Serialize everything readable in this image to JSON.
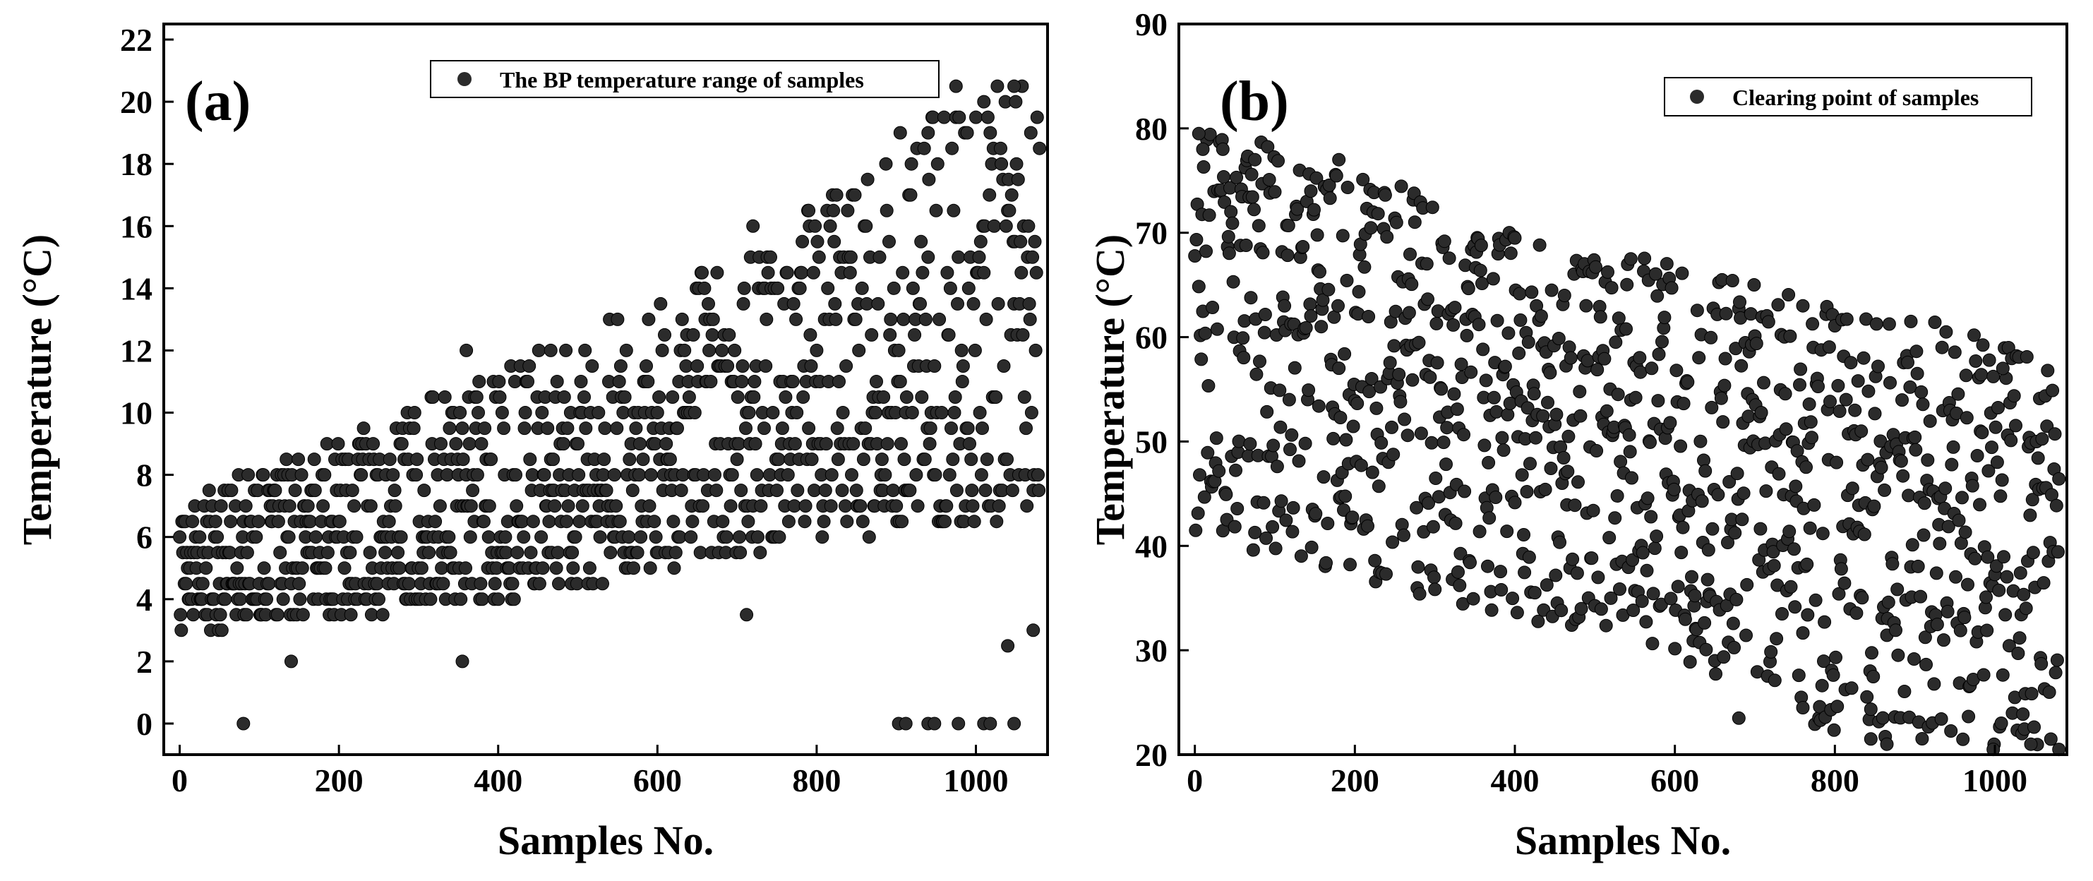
{
  "colors": {
    "marker": "#2b2b2b",
    "axis": "#000000",
    "background": "#ffffff"
  },
  "chart_data": [
    {
      "type": "scatter",
      "panel_label": "(a)",
      "legend": "The BP temperature range of samples",
      "legend_position": "top-right",
      "xlabel": "Samples No.",
      "ylabel": "Temperature (°C)",
      "xlim": [
        -20,
        1090
      ],
      "ylim": [
        -1,
        22.5
      ],
      "xticks": [
        0,
        200,
        400,
        600,
        800,
        1000
      ],
      "yticks": [
        0,
        2,
        4,
        6,
        8,
        10,
        12,
        14,
        16,
        18,
        20,
        22
      ],
      "grid": false,
      "trend": {
        "x": [
          0,
          200,
          400,
          600,
          800,
          1000,
          1080
        ],
        "lower": [
          3,
          3.5,
          4,
          5,
          6,
          6.5,
          7
        ],
        "upper": [
          7.5,
          9,
          11.5,
          13.5,
          16.5,
          20.5,
          20.5
        ]
      },
      "highlight_points": [
        {
          "x": 80,
          "y": 0
        },
        {
          "x": 903,
          "y": 0
        },
        {
          "x": 912,
          "y": 0
        },
        {
          "x": 940,
          "y": 0
        },
        {
          "x": 948,
          "y": 0
        },
        {
          "x": 978,
          "y": 0
        },
        {
          "x": 1010,
          "y": 0
        },
        {
          "x": 1018,
          "y": 0
        },
        {
          "x": 1048,
          "y": 0
        },
        {
          "x": 355,
          "y": 2
        },
        {
          "x": 140,
          "y": 2
        },
        {
          "x": 1040,
          "y": 2.5
        },
        {
          "x": 1072,
          "y": 3
        },
        {
          "x": 712,
          "y": 3.5
        },
        {
          "x": 360,
          "y": 12
        },
        {
          "x": 466,
          "y": 12
        },
        {
          "x": 720,
          "y": 16
        },
        {
          "x": 790,
          "y": 16.5
        },
        {
          "x": 905,
          "y": 19
        },
        {
          "x": 940,
          "y": 19
        },
        {
          "x": 975,
          "y": 20.5
        },
        {
          "x": 1010,
          "y": 20
        },
        {
          "x": 1048,
          "y": 20.5
        }
      ]
    },
    {
      "type": "scatter",
      "panel_label": "(b)",
      "legend": "Clearing point of samples",
      "legend_position": "top-right",
      "xlabel": "Samples No.",
      "ylabel": "Temperature (°C)",
      "xlim": [
        -20,
        1090
      ],
      "ylim": [
        20,
        90
      ],
      "xticks": [
        0,
        200,
        400,
        600,
        800,
        1000
      ],
      "yticks": [
        20,
        30,
        40,
        50,
        60,
        70,
        80,
        90
      ],
      "grid": false,
      "trend": {
        "x": [
          0,
          200,
          400,
          600,
          800,
          1000,
          1080
        ],
        "lower": [
          41,
          37,
          33,
          29,
          22,
          20,
          20
        ],
        "upper": [
          80,
          77,
          70,
          67,
          63,
          61,
          56
        ]
      },
      "highlight_points": [
        {
          "x": 5,
          "y": 79.5
        },
        {
          "x": 10,
          "y": 78
        },
        {
          "x": 35,
          "y": 78
        },
        {
          "x": 75,
          "y": 77
        },
        {
          "x": 180,
          "y": 77
        },
        {
          "x": 145,
          "y": 74
        },
        {
          "x": 400,
          "y": 69.5
        },
        {
          "x": 545,
          "y": 67.5
        },
        {
          "x": 760,
          "y": 63
        },
        {
          "x": 895,
          "y": 61.5
        },
        {
          "x": 1010,
          "y": 57
        },
        {
          "x": 680,
          "y": 23.5
        },
        {
          "x": 760,
          "y": 24.5
        },
        {
          "x": 845,
          "y": 21.5
        },
        {
          "x": 865,
          "y": 21
        },
        {
          "x": 998,
          "y": 20.5
        },
        {
          "x": 1045,
          "y": 21
        },
        {
          "x": 1080,
          "y": 20.5
        }
      ]
    }
  ]
}
